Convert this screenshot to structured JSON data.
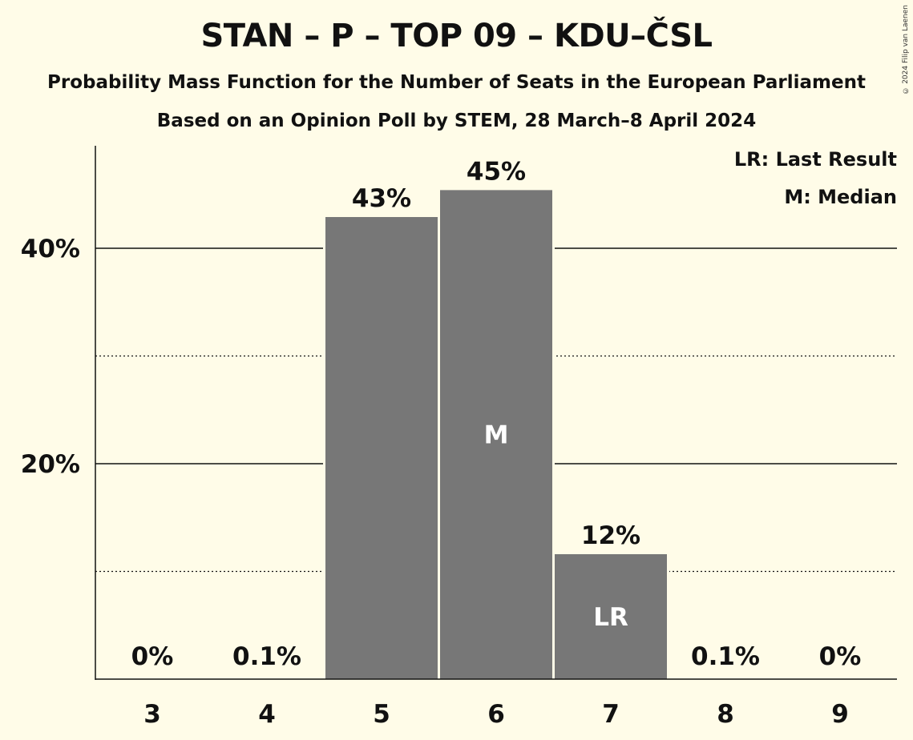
{
  "header": {
    "title": "STAN – P – TOP 09 – KDU–ČSL",
    "subtitle_1": "Probability Mass Function for the Number of Seats in the European Parliament",
    "subtitle_2": "Based on an Opinion Poll by STEM, 28 March–8 April 2024",
    "copyright": "© 2024 Filip van Laenen"
  },
  "legend": {
    "last_result": "LR: Last Result",
    "median": "M: Median"
  },
  "colors": {
    "background": "#fffce8",
    "bar": "#777777",
    "bar_label_inside": "#ffffff"
  },
  "chart_data": {
    "type": "bar",
    "categories": [
      "3",
      "4",
      "5",
      "6",
      "7",
      "8",
      "9"
    ],
    "values": [
      0,
      0.1,
      42.9,
      45.4,
      11.6,
      0.1,
      0
    ],
    "value_labels": [
      "0%",
      "0.1%",
      "43%",
      "45%",
      "12%",
      "0.1%",
      "0%"
    ],
    "bar_markers": [
      "",
      "",
      "",
      "M",
      "LR",
      "",
      ""
    ],
    "ylim": [
      0,
      49.5
    ],
    "y_ticks": [
      {
        "value": 20,
        "label": "20%",
        "style": "solid"
      },
      {
        "value": 40,
        "label": "40%",
        "style": "solid"
      }
    ],
    "minor_gridlines": [
      10,
      30
    ],
    "grid": true,
    "legend_position": "top-right"
  }
}
